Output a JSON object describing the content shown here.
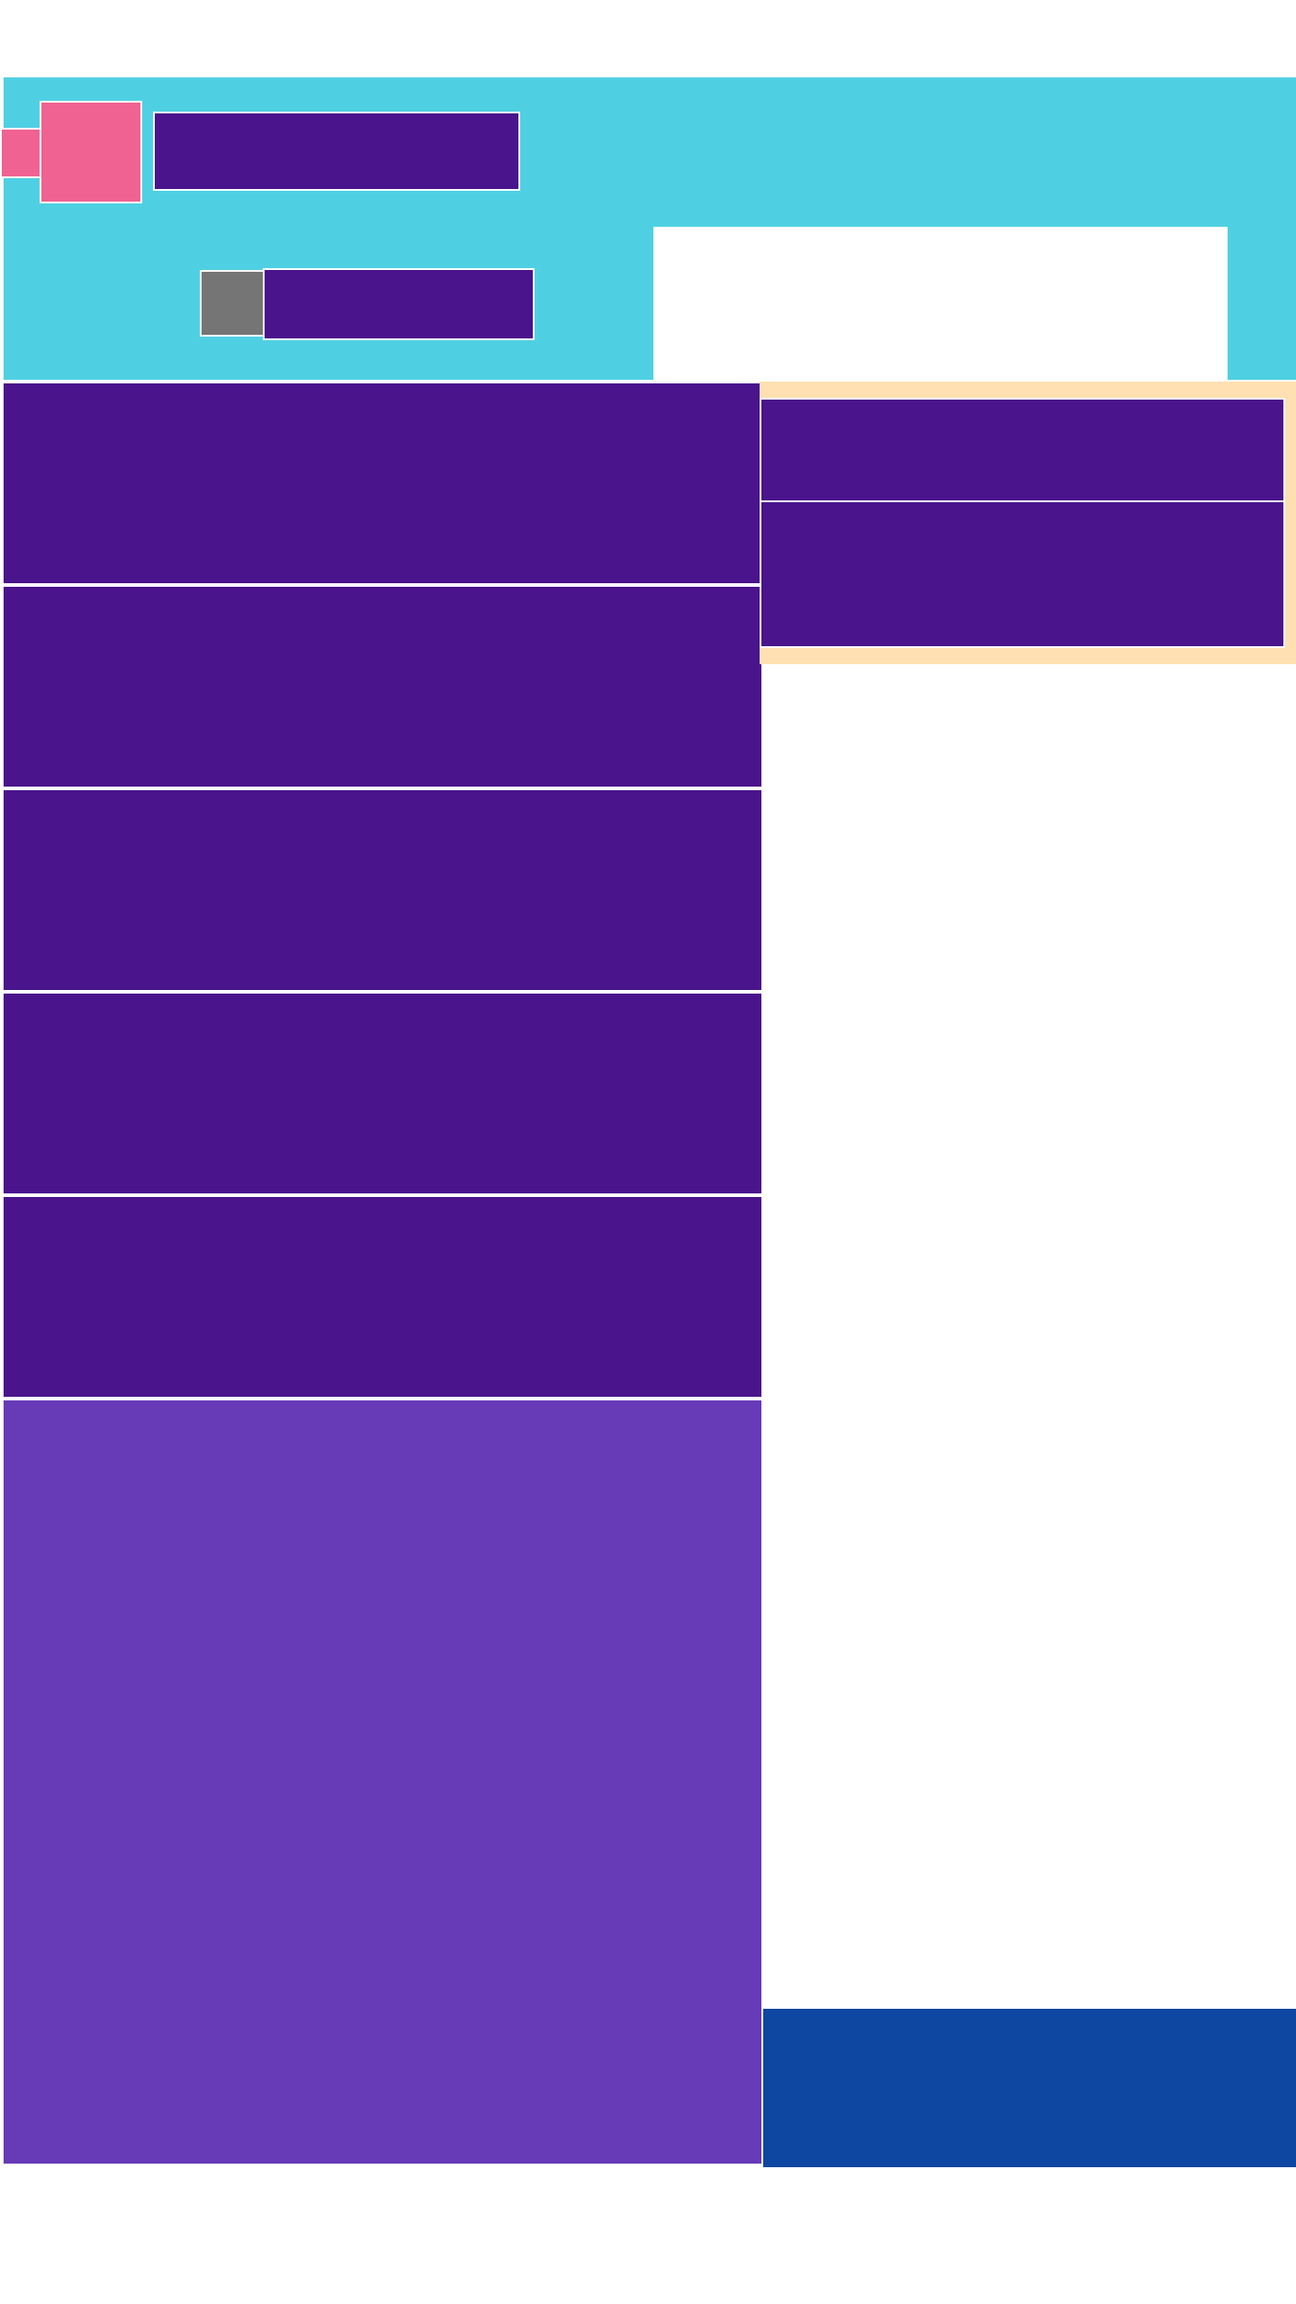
{
  "header": {
    "title": "",
    "subtitle": ""
  },
  "search": {
    "placeholder": ""
  },
  "list": {
    "items": [
      {
        "label": ""
      },
      {
        "label": ""
      },
      {
        "label": ""
      },
      {
        "label": ""
      },
      {
        "label": ""
      }
    ]
  },
  "side": {
    "cards": [
      {
        "label": ""
      },
      {
        "label": ""
      }
    ]
  },
  "colors": {
    "header_bg": "#4fd0e2",
    "accent_pink": "#f06292",
    "deep_purple": "#4a148c",
    "purple": "#673ab7",
    "orange_light": "#ffe0b2",
    "blue": "#0d47a1",
    "gray": "#757575"
  }
}
